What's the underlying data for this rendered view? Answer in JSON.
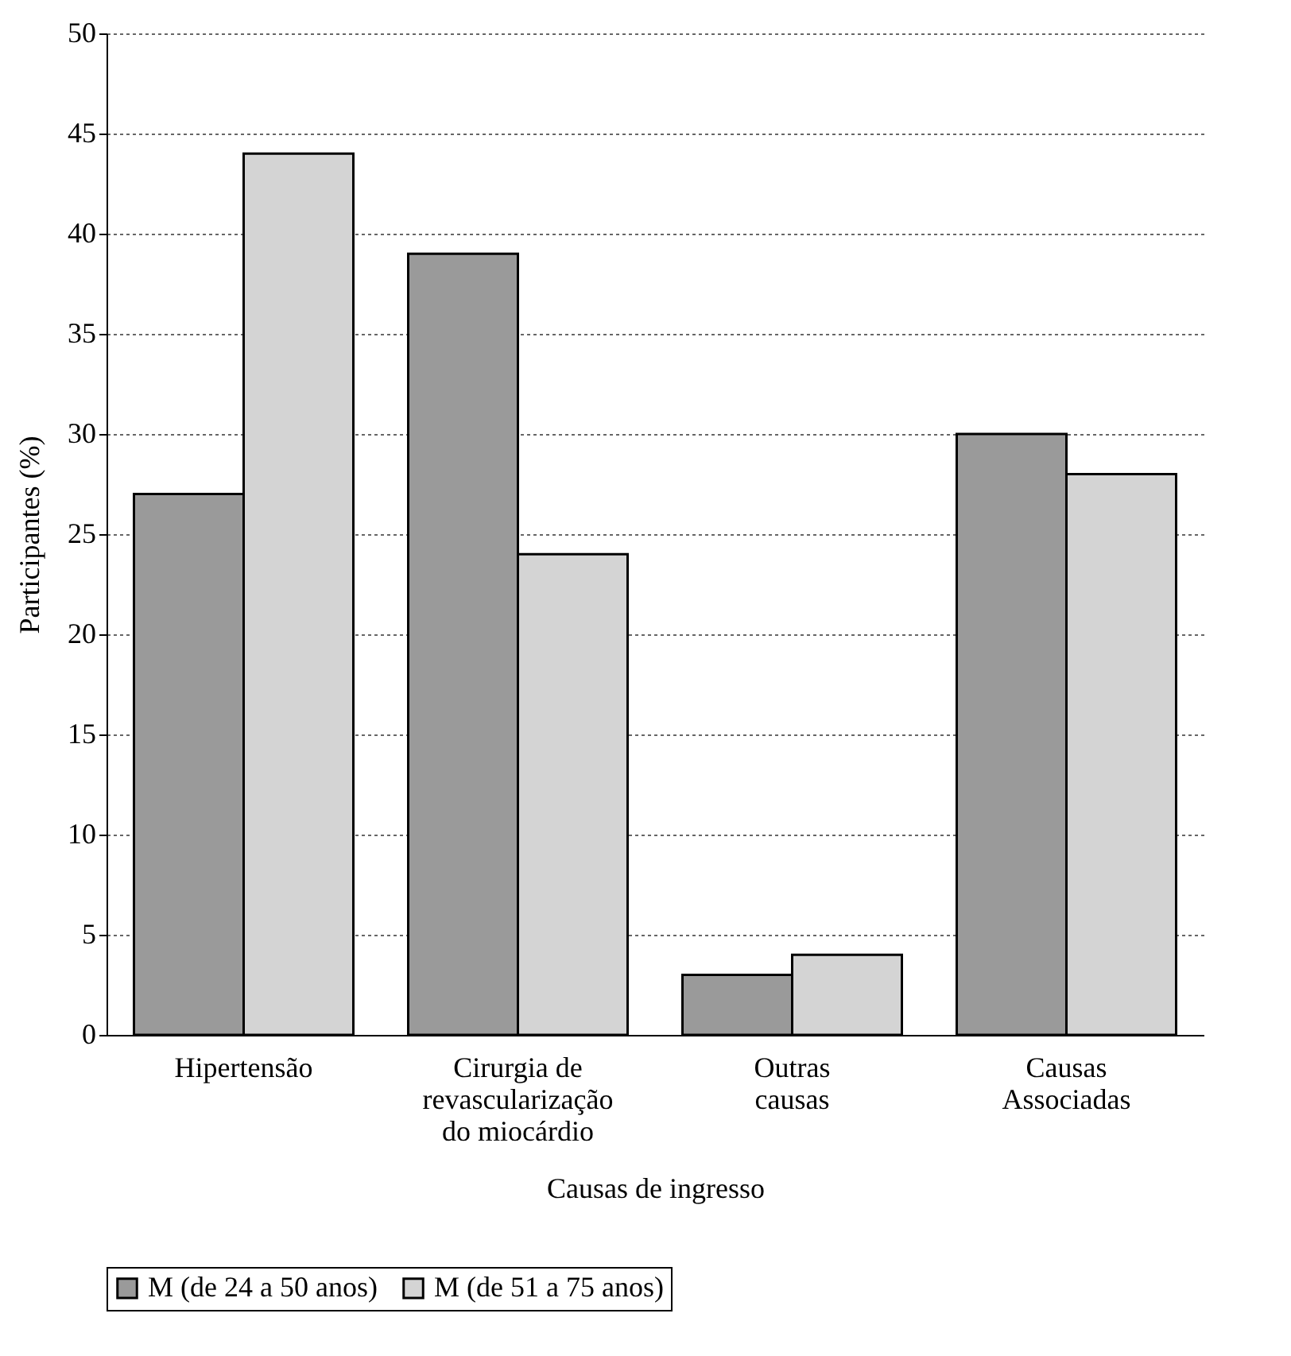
{
  "chart_data": {
    "type": "bar",
    "xlabel": "Causas de ingresso",
    "ylabel": "Participantes (%)",
    "categories": [
      "Hipertensão",
      "Cirurgia de revascularização do miocárdio",
      "Outras causas",
      "Causas Associadas"
    ],
    "series": [
      {
        "name": "M (de 24 a 50 anos)",
        "color": "#9a9a9a",
        "values": [
          27,
          39,
          3,
          30
        ]
      },
      {
        "name": "M (de 51 a 75 anos)",
        "color": "#d4d4d4",
        "values": [
          44,
          24,
          4,
          28
        ]
      }
    ],
    "ylim": [
      0,
      50
    ],
    "yticks": [
      0,
      5,
      10,
      15,
      20,
      25,
      30,
      35,
      40,
      45,
      50
    ],
    "grid": "y",
    "legend": "bottom"
  }
}
